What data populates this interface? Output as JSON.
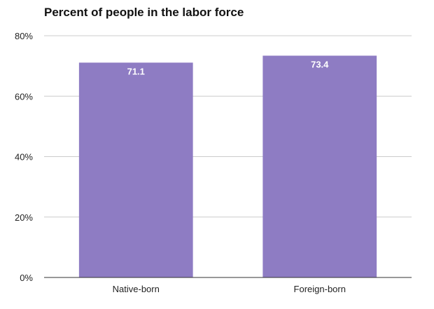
{
  "chart_data": {
    "type": "bar",
    "title": "Percent of people in the labor force",
    "categories": [
      "Native-born",
      "Foreign-born"
    ],
    "values": [
      71.1,
      73.4
    ],
    "data_labels": [
      "71.1",
      "73.4"
    ],
    "ylim": [
      0,
      80
    ],
    "yticks": [
      0,
      20,
      40,
      60,
      80
    ],
    "ytick_labels": [
      "0%",
      "20%",
      "40%",
      "60%",
      "80%"
    ],
    "xlabel": "",
    "ylabel": "",
    "grid": true,
    "legend": "none",
    "colors": {
      "bar": "#8e7cc3",
      "grid": "#cccccc",
      "axis": "#333333",
      "label": "#222222",
      "data_label": "#ffffff"
    }
  }
}
